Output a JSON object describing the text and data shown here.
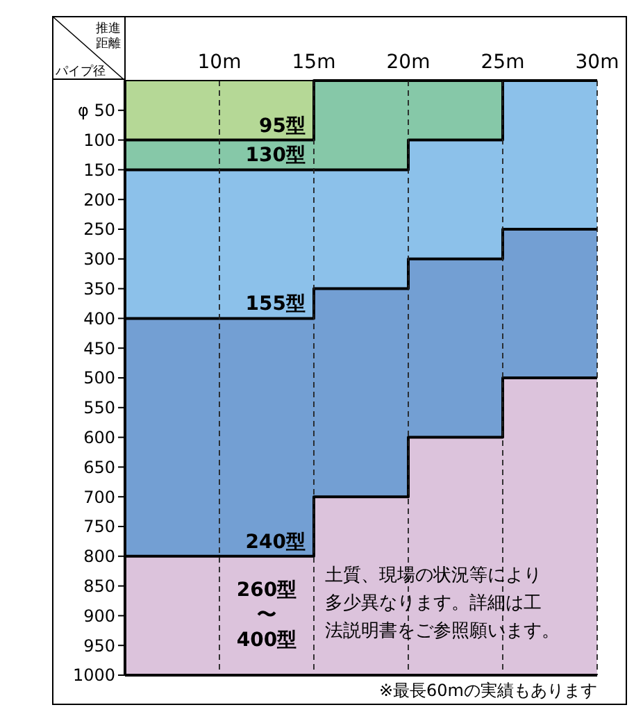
{
  "chart_data": {
    "type": "area",
    "stacked": true,
    "xlabel": "推進距離",
    "ylabel": "パイプ径",
    "x": [
      5,
      15,
      15,
      20,
      20,
      25,
      25,
      30
    ],
    "xlim": [
      5,
      30
    ],
    "xticks": [
      {
        "value": 10,
        "label": "10m"
      },
      {
        "value": 15,
        "label": "15m"
      },
      {
        "value": 20,
        "label": "20m"
      },
      {
        "value": 25,
        "label": "25m"
      },
      {
        "value": 30,
        "label": "30m"
      }
    ],
    "ylim": [
      1000,
      0
    ],
    "yticks": [
      {
        "value": 50,
        "label": "φ 50"
      },
      100,
      150,
      200,
      250,
      300,
      350,
      400,
      450,
      500,
      550,
      600,
      650,
      700,
      750,
      800,
      850,
      900,
      950,
      1000
    ],
    "grid": "x",
    "line_style": "dashed",
    "series": [
      {
        "name": "95型",
        "color": "#b5d896",
        "values": [
          100,
          100,
          0,
          0,
          0,
          0,
          0,
          0
        ]
      },
      {
        "name": "130型",
        "color": "#86c8a8",
        "values": [
          50,
          50,
          150,
          150,
          100,
          100,
          0,
          0
        ]
      },
      {
        "name": "155型",
        "color": "#8cc1ea",
        "values": [
          250,
          250,
          200,
          200,
          200,
          200,
          250,
          250
        ]
      },
      {
        "name": "240型",
        "color": "#739fd3",
        "values": [
          400,
          400,
          350,
          350,
          300,
          300,
          250,
          250
        ]
      },
      {
        "name": "260型〜400型",
        "color": "#dcc3dc",
        "values": [
          200,
          200,
          300,
          300,
          400,
          400,
          500,
          500
        ]
      }
    ],
    "annotations": [
      "土質、現場の状況等により多少異なります。詳細は工法説明書をご参照願います。",
      "※最長60mの実績もあります"
    ]
  }
}
